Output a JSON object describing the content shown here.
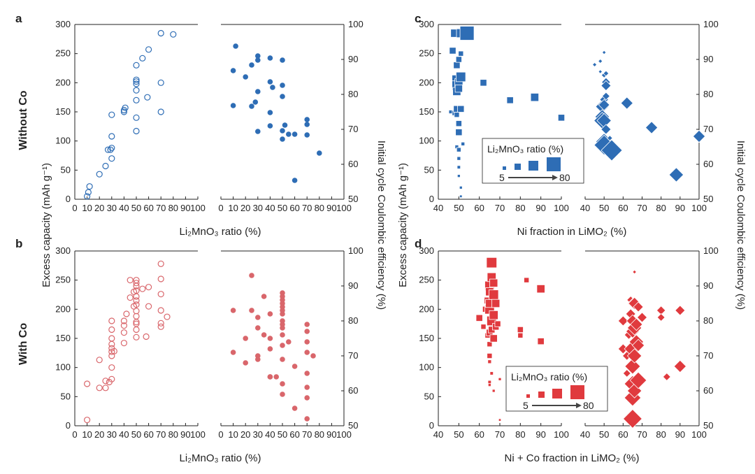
{
  "figure": {
    "row_labels": {
      "without_co": "Without Co",
      "with_co": "With Co"
    },
    "ylabel_left": "Excess capacity (mAh g⁻¹)",
    "ylabel_right": "Initial cycle Coulombic efficiency (%)",
    "xlabel_li2mno3": "Li₂MnO₃ ratio (%)",
    "xlabel_ni": "Ni fraction in LiMO₂ (%)",
    "xlabel_nico": "Ni + Co fraction in LiMO₂ (%)"
  },
  "legend": {
    "title": "Li₂MnO₃ ratio (%)",
    "min_label": "5",
    "max_label": "80"
  },
  "colors": {
    "blue": "#2e6db5",
    "red": "#e03a3e",
    "pink": "#d9666b",
    "axis": "#222222"
  },
  "chart_data": [
    {
      "panel": "a",
      "type": "scatter",
      "side": "left",
      "title": "",
      "xlabel": "Li₂MnO₃ ratio (%)",
      "ylabel": "Excess capacity (mAh g⁻¹)",
      "xlim": [
        0,
        100
      ],
      "ylim": [
        0,
        300
      ],
      "xticks": [
        0,
        10,
        20,
        30,
        40,
        50,
        60,
        70,
        80,
        90,
        100
      ],
      "yticks": [
        0,
        50,
        100,
        150,
        200,
        250,
        300
      ],
      "marker": "open-circle",
      "color": "#2e6db5",
      "x": [
        10,
        11,
        12,
        20,
        25,
        27,
        29,
        30,
        30,
        30,
        30,
        40,
        40,
        41,
        50,
        50,
        50,
        50,
        50,
        50,
        50,
        50,
        55,
        59,
        60,
        70,
        70,
        70,
        80
      ],
      "y": [
        5,
        12,
        22,
        43,
        57,
        85,
        85,
        70,
        88,
        108,
        145,
        150,
        153,
        157,
        117,
        140,
        170,
        187,
        198,
        202,
        205,
        230,
        242,
        175,
        257,
        150,
        200,
        285,
        283
      ]
    },
    {
      "panel": "a",
      "type": "scatter",
      "side": "right",
      "title": "",
      "xlabel": "Li₂MnO₃ ratio (%)",
      "ylabel": "Initial cycle Coulombic efficiency (%)",
      "xlim": [
        0,
        100
      ],
      "ylim": [
        50,
        100
      ],
      "xticks": [
        0,
        10,
        20,
        30,
        40,
        50,
        60,
        70,
        80,
        90,
        100
      ],
      "yticks": [
        50,
        60,
        70,
        80,
        90,
        100
      ],
      "marker": "filled-circle",
      "color": "#2e6db5",
      "x": [
        10,
        10,
        12,
        20,
        25,
        25,
        28,
        30,
        30,
        30,
        30,
        40,
        40,
        40,
        40,
        42,
        50,
        50,
        50,
        50,
        50,
        52,
        55,
        60,
        60,
        70,
        70,
        70,
        80
      ],
      "y": [
        76.8,
        86.8,
        93.8,
        85,
        88.4,
        76.6,
        77.8,
        89.8,
        91,
        80.8,
        69.4,
        90.4,
        83.6,
        74.8,
        71,
        82,
        89.8,
        82.6,
        79.4,
        69.6,
        67.2,
        71.2,
        68.6,
        68.6,
        55.4,
        68.4,
        72.8,
        71.4,
        63.2
      ]
    },
    {
      "panel": "b",
      "type": "scatter",
      "side": "left",
      "title": "",
      "xlabel": "Li₂MnO₃ ratio (%)",
      "ylabel": "Excess capacity (mAh g⁻¹)",
      "xlim": [
        0,
        100
      ],
      "ylim": [
        0,
        300
      ],
      "xticks": [
        0,
        10,
        20,
        30,
        40,
        50,
        60,
        70,
        80,
        90,
        100
      ],
      "yticks": [
        0,
        50,
        100,
        150,
        200,
        250,
        300
      ],
      "marker": "open-circle",
      "color": "#d9666b",
      "x": [
        10,
        10,
        20,
        20,
        25,
        25,
        28,
        30,
        30,
        30,
        30,
        30,
        30,
        30,
        30,
        30,
        32,
        40,
        40,
        40,
        40,
        42,
        45,
        45,
        48,
        48,
        50,
        50,
        50,
        50,
        50,
        50,
        50,
        50,
        50,
        50,
        50,
        50,
        50,
        55,
        58,
        60,
        60,
        70,
        70,
        70,
        70,
        70,
        70,
        75
      ],
      "y": [
        10,
        72,
        65,
        113,
        65,
        77,
        75,
        80,
        100,
        120,
        127,
        133,
        140,
        150,
        165,
        180,
        128,
        142,
        160,
        172,
        180,
        192,
        220,
        250,
        205,
        230,
        152,
        165,
        175,
        188,
        197,
        208,
        215,
        222,
        232,
        240,
        245,
        250,
        178,
        235,
        153,
        205,
        238,
        170,
        176,
        198,
        226,
        252,
        278,
        187
      ]
    },
    {
      "panel": "b",
      "type": "scatter",
      "side": "right",
      "title": "",
      "xlabel": "Li₂MnO₃ ratio (%)",
      "ylabel": "Initial cycle Coulombic efficiency (%)",
      "xlim": [
        0,
        100
      ],
      "ylim": [
        50,
        100
      ],
      "xticks": [
        0,
        10,
        20,
        30,
        40,
        50,
        60,
        70,
        80,
        90,
        100
      ],
      "yticks": [
        50,
        60,
        70,
        80,
        90,
        100
      ],
      "marker": "filled-circle",
      "color": "#d9666b",
      "x": [
        10,
        10,
        20,
        20,
        25,
        25,
        30,
        30,
        30,
        30,
        35,
        35,
        40,
        40,
        40,
        40,
        40,
        45,
        50,
        50,
        50,
        50,
        50,
        50,
        50,
        50,
        50,
        50,
        50,
        50,
        50,
        50,
        50,
        55,
        60,
        60,
        70,
        70,
        70,
        70,
        70,
        70,
        70,
        70,
        75
      ],
      "y": [
        83,
        71,
        75,
        68,
        93,
        83,
        81,
        78,
        70,
        69,
        87,
        76,
        82,
        75,
        72,
        64,
        64,
        64,
        88,
        87,
        86,
        85,
        84,
        83,
        82,
        80,
        79,
        78,
        76,
        73,
        69,
        62,
        59,
        74,
        67,
        55,
        79,
        77,
        74,
        71,
        65,
        61,
        58,
        52,
        70
      ]
    },
    {
      "panel": "c",
      "type": "scatter",
      "side": "left",
      "title": "",
      "xlabel": "Ni fraction in LiMO₂ (%)",
      "ylabel": "Excess capacity (mAh g⁻¹)",
      "xlim": [
        40,
        100
      ],
      "ylim": [
        0,
        300
      ],
      "xticks": [
        40,
        50,
        60,
        70,
        80,
        90,
        100
      ],
      "yticks": [
        0,
        50,
        100,
        150,
        200,
        250,
        300
      ],
      "marker": "filled-square",
      "color": "#2e6db5",
      "x": [
        46,
        47,
        48,
        48,
        49,
        49,
        49,
        49,
        49,
        49,
        49,
        50,
        50,
        50,
        50,
        50,
        50,
        50,
        50,
        50,
        51,
        51,
        51,
        51,
        51,
        51,
        52,
        54,
        62,
        75,
        87,
        100
      ],
      "y": [
        150,
        255,
        285,
        148,
        230,
        205,
        195,
        185,
        155,
        145,
        90,
        240,
        200,
        190,
        130,
        115,
        85,
        70,
        55,
        40,
        285,
        250,
        210,
        155,
        20,
        5,
        95,
        285,
        200,
        170,
        175,
        140
      ],
      "size_ratio": [
        10,
        30,
        40,
        20,
        30,
        50,
        50,
        40,
        30,
        20,
        10,
        25,
        40,
        35,
        25,
        30,
        15,
        10,
        8,
        5,
        45,
        20,
        50,
        30,
        5,
        3,
        10,
        80,
        30,
        30,
        40,
        30
      ]
    },
    {
      "panel": "c",
      "type": "scatter",
      "side": "right",
      "title": "",
      "xlabel": "Ni fraction in LiMO₂ (%)",
      "ylabel": "Initial cycle Coulombic efficiency (%)",
      "xlim": [
        40,
        100
      ],
      "ylim": [
        50,
        100
      ],
      "xticks": [
        40,
        50,
        60,
        70,
        80,
        90,
        100
      ],
      "yticks": [
        50,
        60,
        70,
        80,
        90,
        100
      ],
      "marker": "filled-diamond",
      "color": "#2e6db5",
      "x": [
        45,
        48,
        48,
        49,
        49,
        49,
        50,
        50,
        50,
        50,
        50,
        50,
        50,
        51,
        51,
        51,
        51,
        51,
        53,
        54,
        62,
        75,
        88,
        100
      ],
      "y": [
        88.5,
        89.5,
        86.5,
        76.5,
        73.6,
        72.5,
        92,
        85.5,
        78.5,
        77,
        72.5,
        66.5,
        65.5,
        86,
        83.5,
        82.5,
        79.5,
        70,
        67.5,
        64,
        77.5,
        70.5,
        57,
        68
      ],
      "size_ratio": [
        5,
        5,
        3,
        45,
        50,
        60,
        3,
        10,
        25,
        35,
        50,
        60,
        75,
        10,
        25,
        30,
        20,
        30,
        10,
        80,
        40,
        40,
        50,
        40
      ]
    },
    {
      "panel": "d",
      "type": "scatter",
      "side": "left",
      "title": "",
      "xlabel": "Ni + Co fraction in LiMO₂ (%)",
      "ylabel": "Excess capacity (mAh g⁻¹)",
      "xlim": [
        40,
        100
      ],
      "ylim": [
        0,
        300
      ],
      "xticks": [
        40,
        50,
        60,
        70,
        80,
        90,
        100
      ],
      "yticks": [
        0,
        50,
        100,
        150,
        200,
        250,
        300
      ],
      "marker": "filled-square",
      "color": "#e03a3e",
      "x": [
        60,
        62,
        63,
        64,
        64,
        65,
        65,
        65,
        65,
        65,
        65,
        65,
        65,
        65,
        65,
        66,
        66,
        66,
        66,
        66,
        67,
        67,
        67,
        67,
        67,
        68,
        68,
        69,
        70,
        70,
        80,
        80,
        83,
        90,
        90
      ],
      "y": [
        185,
        170,
        200,
        215,
        155,
        240,
        230,
        200,
        160,
        140,
        110,
        75,
        70,
        120,
        210,
        280,
        255,
        180,
        165,
        90,
        245,
        225,
        190,
        150,
        60,
        210,
        170,
        175,
        80,
        10,
        165,
        155,
        250,
        235,
        145
      ],
      "size_ratio": [
        30,
        20,
        25,
        30,
        20,
        50,
        40,
        50,
        30,
        20,
        10,
        8,
        5,
        20,
        40,
        55,
        45,
        50,
        30,
        8,
        40,
        50,
        45,
        35,
        5,
        40,
        30,
        25,
        5,
        2,
        25,
        20,
        20,
        40,
        30
      ]
    },
    {
      "panel": "d",
      "type": "scatter",
      "side": "right",
      "title": "",
      "xlabel": "Ni + Co fraction in LiMO₂ (%)",
      "ylabel": "Initial cycle Coulombic efficiency (%)",
      "xlim": [
        40,
        100
      ],
      "ylim": [
        50,
        100
      ],
      "xticks": [
        40,
        50,
        60,
        70,
        80,
        90,
        100
      ],
      "yticks": [
        50,
        60,
        70,
        80,
        90,
        100
      ],
      "marker": "filled-diamond",
      "color": "#e03a3e",
      "x": [
        60,
        60,
        62,
        62,
        63,
        64,
        64,
        65,
        65,
        65,
        65,
        65,
        65,
        65,
        65,
        66,
        66,
        66,
        66,
        66,
        67,
        67,
        68,
        68,
        68,
        70,
        80,
        80,
        83,
        90,
        90
      ],
      "y": [
        80,
        72,
        70,
        65,
        76,
        82,
        86,
        85,
        80,
        77,
        72,
        67,
        62,
        58,
        52,
        94,
        85,
        78,
        70,
        60,
        79,
        74,
        84,
        73,
        63,
        81,
        83,
        81,
        64,
        83,
        67
      ],
      "size_ratio": [
        30,
        30,
        25,
        20,
        25,
        30,
        20,
        30,
        40,
        45,
        60,
        55,
        60,
        60,
        70,
        3,
        40,
        50,
        50,
        50,
        40,
        50,
        30,
        40,
        60,
        30,
        25,
        20,
        20,
        30,
        40
      ]
    }
  ]
}
